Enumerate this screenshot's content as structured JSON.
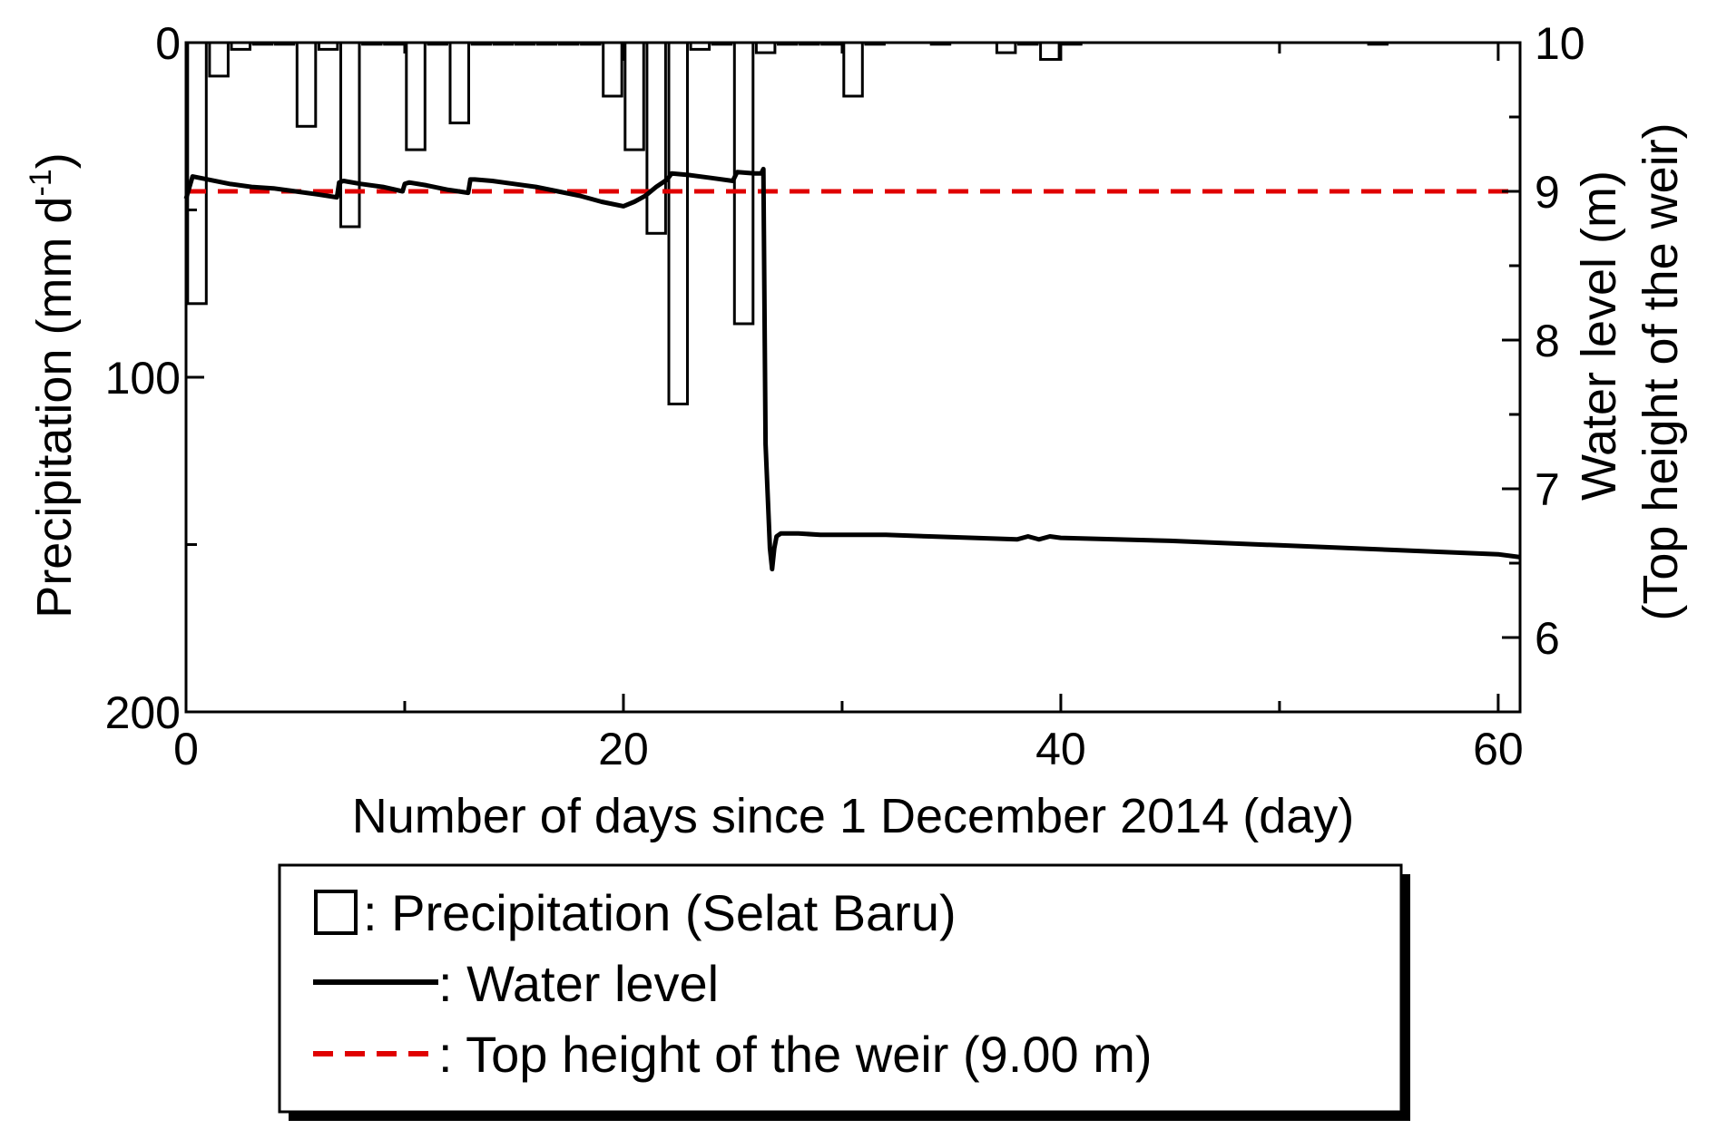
{
  "chart_data": {
    "type": "bar+line",
    "xlabel": "Number of days since 1 December 2014 (day)",
    "ylabel_left_main": "Precipitation (mm d",
    "ylabel_left_sup": "-1",
    "ylabel_left_close": ")",
    "ylabel_right_line1": "Water level  (m)",
    "ylabel_right_line2": "(Top height of the weir)",
    "xlim": [
      0,
      61
    ],
    "x_ticks": [
      0,
      20,
      40,
      60
    ],
    "x_tick_labels": [
      "0",
      "20",
      "40",
      "60"
    ],
    "precip_lim": [
      200,
      0
    ],
    "precip_ticks": [
      0,
      100,
      200
    ],
    "precip_tick_labels": [
      "0",
      "100",
      "200"
    ],
    "water_lim": [
      5.5,
      10
    ],
    "water_ticks": [
      6,
      7,
      8,
      9,
      10
    ],
    "water_tick_labels": [
      "6",
      "7",
      "8",
      "9",
      "10"
    ],
    "precipitation": {
      "name": "Precipitation (Selat Baru)",
      "days": [
        0,
        1,
        2,
        3,
        4,
        5,
        6,
        7,
        8,
        9,
        10,
        11,
        12,
        13,
        14,
        15,
        16,
        17,
        18,
        19,
        20,
        21,
        22,
        23,
        24,
        25,
        26,
        27,
        28,
        29,
        30,
        31,
        32,
        33,
        34,
        35,
        36,
        37,
        38,
        39,
        40,
        41,
        42,
        43,
        44,
        45,
        46,
        47,
        48,
        49,
        50,
        51,
        52,
        53,
        54,
        55,
        56,
        57,
        58,
        59,
        60
      ],
      "values": [
        78,
        10,
        2,
        0.5,
        0.5,
        25,
        2,
        55,
        0.5,
        0.5,
        32,
        0.5,
        24,
        0.5,
        0.5,
        0.5,
        0.5,
        0.5,
        0.5,
        16,
        32,
        57,
        108,
        2,
        0.5,
        84,
        3,
        0.5,
        0.5,
        0.5,
        16,
        0.5,
        0,
        0,
        0.5,
        0,
        0,
        3,
        0.5,
        5,
        0.5,
        0,
        0,
        0,
        0,
        0,
        0,
        0,
        0,
        0,
        0,
        0,
        0,
        0,
        0.5,
        0,
        0,
        0,
        0,
        0,
        0
      ]
    },
    "water_level": {
      "name": "Water level",
      "x": [
        0,
        0.3,
        1,
        2,
        3,
        4,
        5,
        6,
        6.9,
        7,
        7.2,
        8,
        9,
        9.9,
        10,
        10.2,
        11,
        12,
        12.9,
        13,
        13.2,
        14,
        15,
        16,
        17,
        18,
        19,
        20,
        20.5,
        21,
        21.5,
        22,
        22.2,
        23,
        24,
        25,
        25.2,
        26,
        26.3,
        26.4,
        26.5,
        26.6,
        26.7,
        26.8,
        26.9,
        27,
        27.2,
        27.5,
        28,
        29,
        30,
        32,
        34,
        36,
        38,
        38.5,
        39,
        39.5,
        40,
        45,
        50,
        55,
        60,
        61
      ],
      "y": [
        8.95,
        9.1,
        9.08,
        9.05,
        9.03,
        9.02,
        9.0,
        8.98,
        8.96,
        9.06,
        9.07,
        9.05,
        9.03,
        9.0,
        9.05,
        9.06,
        9.04,
        9.01,
        8.99,
        9.08,
        9.08,
        9.07,
        9.05,
        9.03,
        9.0,
        8.97,
        8.93,
        8.9,
        8.93,
        8.97,
        9.03,
        9.08,
        9.12,
        9.11,
        9.09,
        9.07,
        9.13,
        9.12,
        9.12,
        9.15,
        7.3,
        6.95,
        6.6,
        6.46,
        6.6,
        6.68,
        6.7,
        6.7,
        6.7,
        6.69,
        6.69,
        6.69,
        6.68,
        6.67,
        6.66,
        6.68,
        6.66,
        6.68,
        6.67,
        6.65,
        6.62,
        6.59,
        6.56,
        6.54
      ]
    },
    "weir": {
      "name": "Top height of the weir (9.00 m)",
      "value": 9.0
    },
    "colors": {
      "bars": "#000000",
      "water_level": "#000000",
      "weir": "#e00000"
    },
    "legend_placement": "bottom-center",
    "grid": false
  },
  "legend": {
    "precip_label": ": Precipitation (Selat Baru)",
    "water_label": ": Water level",
    "weir_label": ": Top height of the weir (9.00 m)"
  }
}
